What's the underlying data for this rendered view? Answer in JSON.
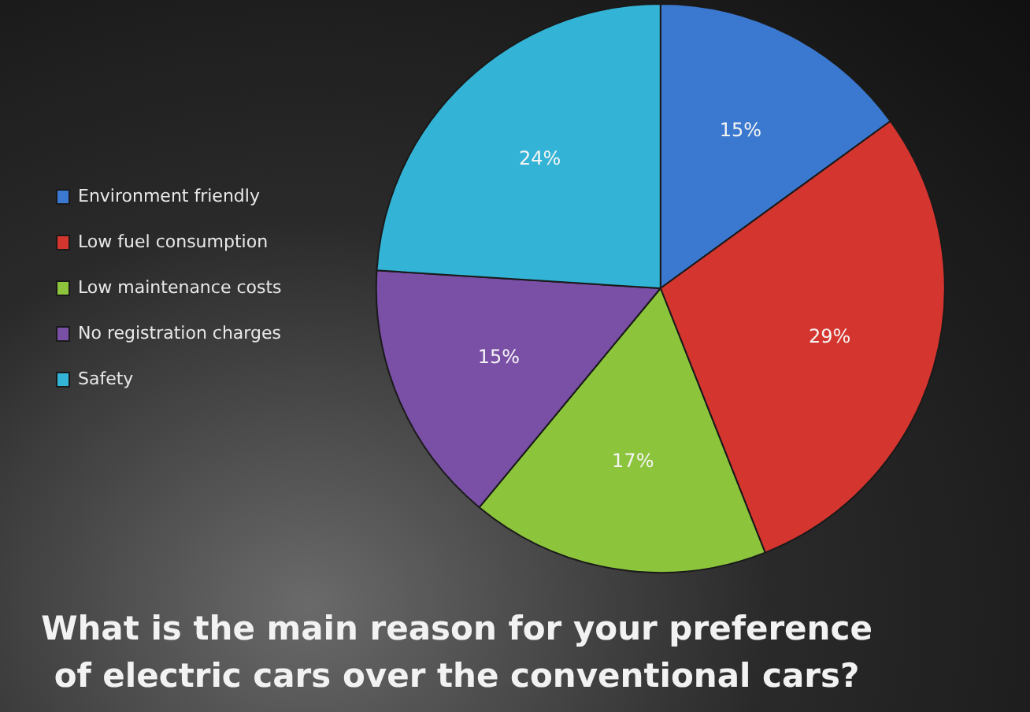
{
  "chart_data": {
    "type": "pie",
    "title": "What is the main reason for your preference of electric cars over the conventional cars?",
    "categories": [
      "Environment friendly",
      "Low fuel consumption",
      "Low maintenance costs",
      "No registration charges",
      "Safety"
    ],
    "values": [
      15,
      29,
      17,
      15,
      24
    ],
    "colors": [
      "#3b78cf",
      "#d4352f",
      "#8cc43c",
      "#7a4fa6",
      "#33b4d6"
    ],
    "value_labels": [
      "15%",
      "29%",
      "17%",
      "15%",
      "24%"
    ],
    "legend": "left"
  }
}
